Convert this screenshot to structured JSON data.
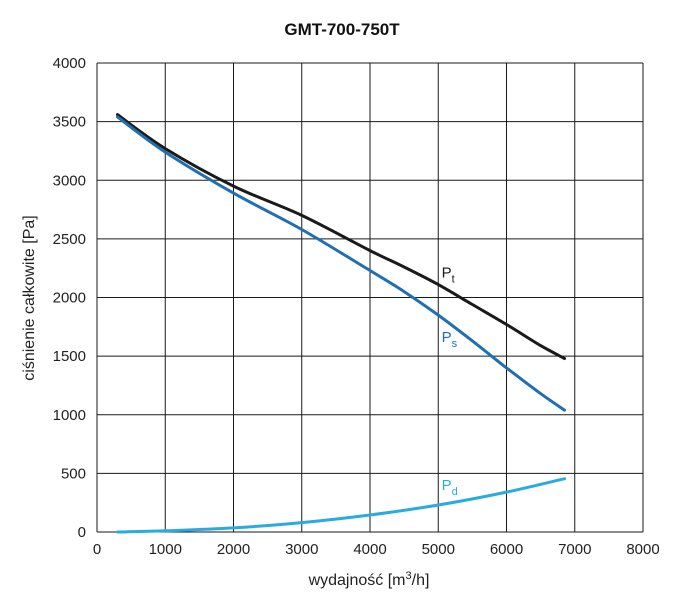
{
  "chart_data": {
    "type": "line",
    "title": "GMT-700-750T",
    "xlabel": "wydajność [m",
    "xlabel_sup": "3",
    "xlabel_end": "/h]",
    "ylabel": "ciśnienie całkowite [Pa]",
    "xlim": [
      0,
      8000
    ],
    "ylim": [
      0,
      4000
    ],
    "x_ticks": [
      "0",
      "1000",
      "2000",
      "3000",
      "4000",
      "5000",
      "6000",
      "7000",
      "8000"
    ],
    "y_ticks": [
      "0",
      "500",
      "1000",
      "1500",
      "2000",
      "2500",
      "3000",
      "3500",
      "4000"
    ],
    "grid": true,
    "series": [
      {
        "name": "P",
        "subscript": "t",
        "color": "#1a1a1a",
        "x": [
          300,
          1000,
          2000,
          3000,
          4000,
          4500,
          5000,
          5500,
          6000,
          6500,
          6850
        ],
        "y": [
          3560,
          3270,
          2950,
          2700,
          2400,
          2260,
          2110,
          1940,
          1770,
          1590,
          1480
        ]
      },
      {
        "name": "P",
        "subscript": "s",
        "color": "#1f6fb2",
        "x": [
          300,
          1000,
          2000,
          3000,
          4000,
          4500,
          5000,
          5500,
          6000,
          6500,
          6850
        ],
        "y": [
          3540,
          3240,
          2890,
          2580,
          2230,
          2050,
          1850,
          1630,
          1400,
          1180,
          1040
        ]
      },
      {
        "name": "P",
        "subscript": "d",
        "color": "#29abe2",
        "x": [
          300,
          1000,
          2000,
          3000,
          4000,
          5000,
          6000,
          6850
        ],
        "y": [
          0,
          10,
          35,
          80,
          145,
          230,
          340,
          455
        ]
      }
    ]
  }
}
